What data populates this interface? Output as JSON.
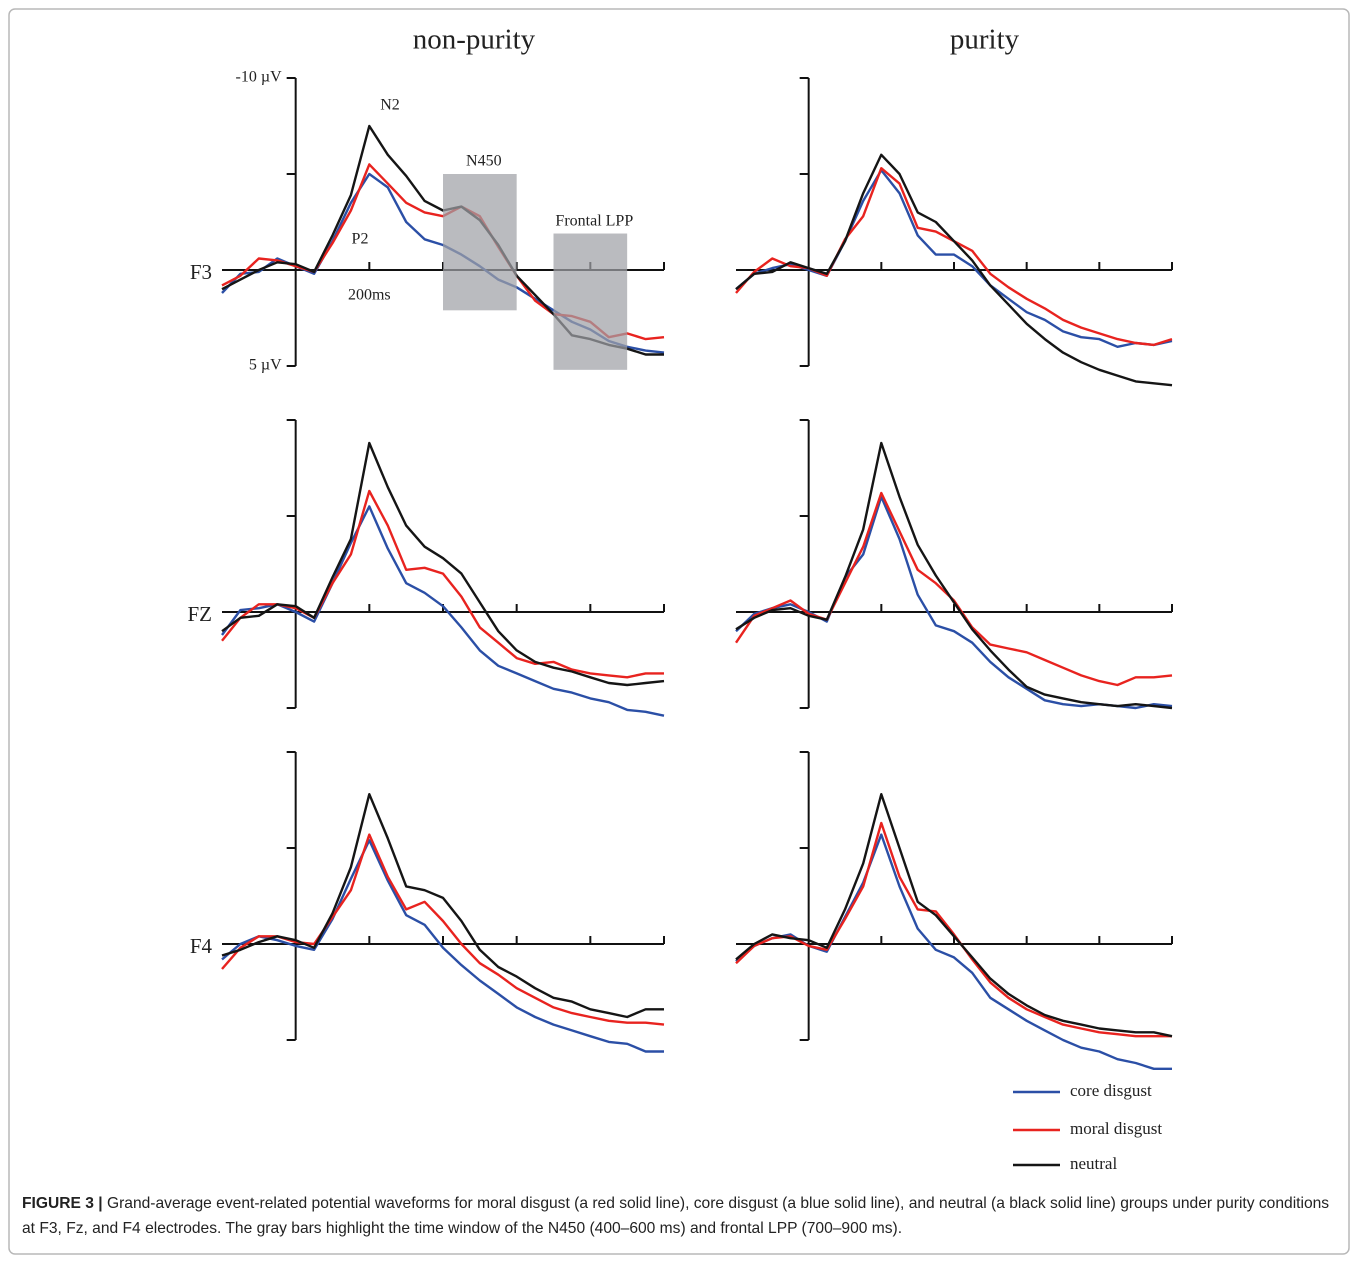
{
  "chart_data": {
    "type": "line",
    "columns": [
      "non-purity",
      "purity"
    ],
    "rows": [
      "F3",
      "FZ",
      "F4"
    ],
    "x": [
      -200,
      -150,
      -100,
      -50,
      0,
      50,
      100,
      150,
      200,
      250,
      300,
      350,
      400,
      450,
      500,
      550,
      600,
      650,
      700,
      750,
      800,
      850,
      900,
      950,
      1000
    ],
    "xlim": [
      -200,
      1000
    ],
    "xticks": [
      {
        "value": 200,
        "label": "200ms"
      },
      400,
      600,
      800,
      1000
    ],
    "ylim": [
      -10,
      5
    ],
    "y_inverted": true,
    "yticks": [
      {
        "value": -10,
        "label": "-10 µV"
      },
      -5,
      {
        "value": 5,
        "label": "5 µV"
      }
    ],
    "annotations": [
      "N2",
      "P2"
    ],
    "windows": [
      {
        "label": "N450",
        "range": [
          400,
          600
        ]
      },
      {
        "label": "Frontal LPP",
        "range": [
          700,
          900
        ]
      }
    ],
    "series": [
      {
        "name": "core disgust",
        "color": "#2b4fa6",
        "values": [
          [
            [
              1.2,
              0.2,
              0.1,
              -0.6,
              -0.2,
              0.2,
              -1.5,
              -3.5,
              -5.0,
              -4.3,
              -2.5,
              -1.6,
              -1.3,
              -0.8,
              -0.2,
              0.5,
              0.9,
              1.5,
              2.1,
              2.7,
              3.1,
              3.7,
              4.0,
              4.2,
              4.3
            ],
            [
              1.0,
              0.2,
              -0.1,
              -0.3,
              0.0,
              0.3,
              -1.5,
              -3.6,
              -5.2,
              -4.0,
              -1.8,
              -0.8,
              -0.8,
              -0.2,
              0.8,
              1.5,
              2.2,
              2.6,
              3.2,
              3.5,
              3.6,
              4.0,
              3.8,
              3.9,
              3.7
            ]
          ],
          [
            [
              1.2,
              -0.1,
              -0.2,
              -0.4,
              0.0,
              0.5,
              -1.5,
              -3.6,
              -5.5,
              -3.3,
              -1.5,
              -1.0,
              -0.3,
              0.8,
              2.0,
              2.8,
              3.2,
              3.6,
              4.0,
              4.2,
              4.5,
              4.7,
              5.1,
              5.2,
              5.4
            ],
            [
              1.0,
              0.1,
              -0.2,
              -0.4,
              0.0,
              0.5,
              -1.8,
              -3.0,
              -6.0,
              -3.8,
              -0.9,
              0.7,
              1.0,
              1.6,
              2.6,
              3.4,
              4.0,
              4.6,
              4.8,
              4.9,
              4.8,
              4.9,
              5.0,
              4.8,
              4.9
            ]
          ],
          [
            [
              0.8,
              0.0,
              -0.4,
              -0.2,
              0.1,
              0.3,
              -1.3,
              -3.4,
              -5.4,
              -3.3,
              -1.5,
              -1.0,
              0.2,
              1.1,
              1.9,
              2.6,
              3.3,
              3.8,
              4.2,
              4.5,
              4.8,
              5.1,
              5.2,
              5.6,
              5.6
            ],
            [
              0.9,
              0.1,
              -0.3,
              -0.5,
              0.1,
              0.4,
              -1.4,
              -3.2,
              -5.7,
              -3.0,
              -0.8,
              0.3,
              0.7,
              1.5,
              2.8,
              3.4,
              4.0,
              4.5,
              5.0,
              5.4,
              5.6,
              6.0,
              6.2,
              6.5,
              6.5
            ]
          ]
        ]
      },
      {
        "name": "moral disgust",
        "color": "#e8231f",
        "values": [
          [
            [
              0.8,
              0.3,
              -0.6,
              -0.5,
              -0.2,
              0.1,
              -1.4,
              -3.1,
              -5.5,
              -4.5,
              -3.5,
              -3.0,
              -2.8,
              -3.3,
              -2.8,
              -1.2,
              0.3,
              1.6,
              2.3,
              2.4,
              2.7,
              3.5,
              3.3,
              3.6,
              3.5
            ],
            [
              1.2,
              0.1,
              -0.6,
              -0.2,
              -0.1,
              0.3,
              -1.6,
              -2.8,
              -5.3,
              -4.5,
              -2.2,
              -2.0,
              -1.5,
              -1.0,
              0.2,
              0.9,
              1.5,
              2.0,
              2.6,
              3.0,
              3.3,
              3.6,
              3.8,
              3.9,
              3.6
            ]
          ],
          [
            [
              1.5,
              0.3,
              -0.4,
              -0.4,
              -0.2,
              0.3,
              -1.5,
              -3.0,
              -6.3,
              -4.5,
              -2.2,
              -2.3,
              -2.0,
              -0.8,
              0.8,
              1.6,
              2.4,
              2.7,
              2.6,
              3.0,
              3.2,
              3.3,
              3.4,
              3.2,
              3.2
            ],
            [
              1.6,
              0.2,
              -0.2,
              -0.6,
              0.1,
              0.4,
              -1.5,
              -3.4,
              -6.2,
              -4.2,
              -2.2,
              -1.5,
              -0.6,
              0.8,
              1.7,
              1.9,
              2.1,
              2.5,
              2.9,
              3.3,
              3.6,
              3.8,
              3.4,
              3.4,
              3.3
            ]
          ],
          [
            [
              1.3,
              0.2,
              -0.4,
              -0.4,
              -0.1,
              0.0,
              -1.4,
              -2.8,
              -5.7,
              -3.5,
              -1.8,
              -2.2,
              -1.2,
              0.0,
              1.0,
              1.6,
              2.3,
              2.8,
              3.3,
              3.6,
              3.8,
              4.0,
              4.1,
              4.1,
              4.2
            ],
            [
              1.0,
              0.1,
              -0.3,
              -0.4,
              0.1,
              0.3,
              -1.3,
              -3.0,
              -6.3,
              -3.5,
              -1.8,
              -1.7,
              -0.5,
              0.8,
              2.0,
              2.8,
              3.4,
              3.8,
              4.2,
              4.4,
              4.6,
              4.7,
              4.8,
              4.8,
              4.8
            ]
          ]
        ]
      },
      {
        "name": "neutral",
        "color": "#151515",
        "values": [
          [
            [
              1.0,
              0.5,
              0.0,
              -0.4,
              -0.3,
              0.1,
              -1.8,
              -3.9,
              -7.5,
              -6.0,
              -4.9,
              -3.6,
              -3.1,
              -3.3,
              -2.6,
              -1.3,
              0.3,
              1.3,
              2.3,
              3.4,
              3.6,
              3.9,
              4.1,
              4.4,
              4.4
            ],
            [
              1.0,
              0.2,
              0.1,
              -0.4,
              -0.1,
              0.2,
              -1.5,
              -4.0,
              -6.0,
              -5.0,
              -3.0,
              -2.5,
              -1.5,
              -0.5,
              0.8,
              1.8,
              2.8,
              3.6,
              4.3,
              4.8,
              5.2,
              5.5,
              5.8,
              5.9,
              6.0
            ]
          ],
          [
            [
              1.0,
              0.3,
              0.2,
              -0.4,
              -0.3,
              0.3,
              -1.8,
              -3.8,
              -8.8,
              -6.5,
              -4.5,
              -3.4,
              -2.8,
              -2.0,
              -0.5,
              1.0,
              2.0,
              2.6,
              2.9,
              3.1,
              3.4,
              3.7,
              3.8,
              3.7,
              3.6
            ],
            [
              0.9,
              0.3,
              -0.1,
              -0.2,
              0.2,
              0.4,
              -1.8,
              -4.3,
              -8.8,
              -6.0,
              -3.5,
              -1.9,
              -0.5,
              0.9,
              2.0,
              3.0,
              3.9,
              4.3,
              4.5,
              4.7,
              4.8,
              4.9,
              4.8,
              4.9,
              5.0
            ]
          ],
          [
            [
              0.6,
              0.3,
              -0.1,
              -0.4,
              -0.2,
              0.2,
              -1.6,
              -4.0,
              -7.8,
              -5.5,
              -3.0,
              -2.8,
              -2.4,
              -1.2,
              0.3,
              1.2,
              1.7,
              2.3,
              2.8,
              3.0,
              3.4,
              3.6,
              3.8,
              3.4,
              3.4
            ],
            [
              0.8,
              0.0,
              -0.5,
              -0.3,
              -0.2,
              0.2,
              -1.8,
              -4.2,
              -7.8,
              -5.0,
              -2.2,
              -1.5,
              -0.4,
              0.7,
              1.8,
              2.6,
              3.2,
              3.7,
              4.0,
              4.2,
              4.4,
              4.5,
              4.6,
              4.6,
              4.8
            ]
          ]
        ]
      }
    ]
  },
  "caption": {
    "label": "FIGURE 3 |",
    "text": "Grand-average event-related potential waveforms for moral disgust (a red solid line), core disgust (a blue solid line), and neutral (a black solid line) groups under purity conditions at F3, Fz, and F4 electrodes. The gray bars highlight the time window of the N450 (400–600 ms) and frontal LPP (700–900 ms)."
  }
}
